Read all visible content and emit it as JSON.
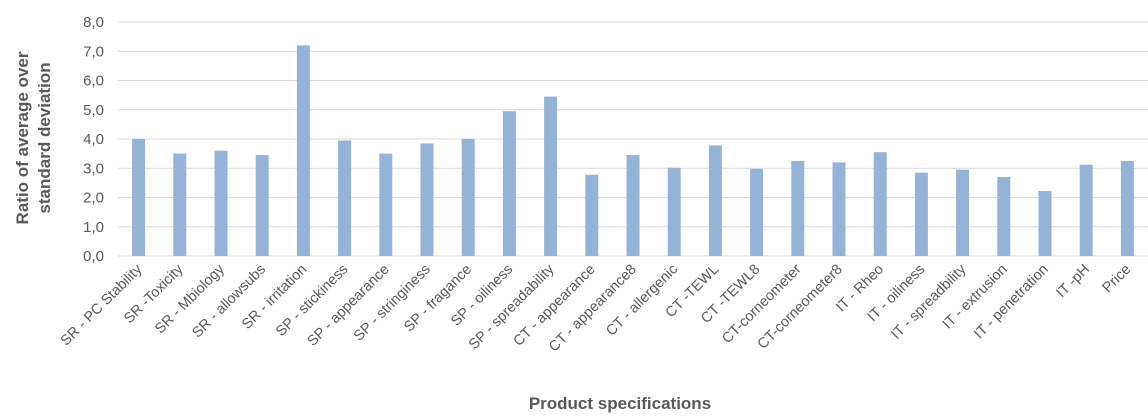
{
  "chart_data": {
    "type": "bar",
    "title": "",
    "xlabel": "Product specifications",
    "ylabel": [
      "Ratio  of average over",
      "standard deviation"
    ],
    "ylim": [
      0,
      8
    ],
    "yticks": [
      "0,0",
      "1,0",
      "2,0",
      "3,0",
      "4,0",
      "5,0",
      "6,0",
      "7,0",
      "8,0"
    ],
    "grid": true,
    "legend": "none",
    "bar_color": "#95b3d7",
    "categories": [
      "SR - PC Stability",
      "SR -Toxicity",
      "SR - Mbiology",
      "SR - allowsubs",
      "SR - irritation",
      "SP - stickiness",
      "SP - appearance",
      "SP - stringiness",
      "SP - fragance",
      "SP - oiliness",
      "SP - spreadability",
      "CT - appearance",
      "CT - appearance8",
      "CT - allergenic",
      "CT -TEWL",
      "CT -TEWL8",
      "CT-corneometer",
      "CT-corneometer8",
      "IT - Rheo",
      "IT - oiliness",
      "IT - spreadbility",
      "IT - extrusion",
      "IT - penetration",
      "IT -pH",
      "Price"
    ],
    "values": [
      4.0,
      3.5,
      3.6,
      3.45,
      7.2,
      3.95,
      3.5,
      3.85,
      4.0,
      4.95,
      5.45,
      2.78,
      3.45,
      3.02,
      3.78,
      2.98,
      3.25,
      3.2,
      3.55,
      2.85,
      2.95,
      2.7,
      2.22,
      3.12,
      3.25
    ]
  }
}
